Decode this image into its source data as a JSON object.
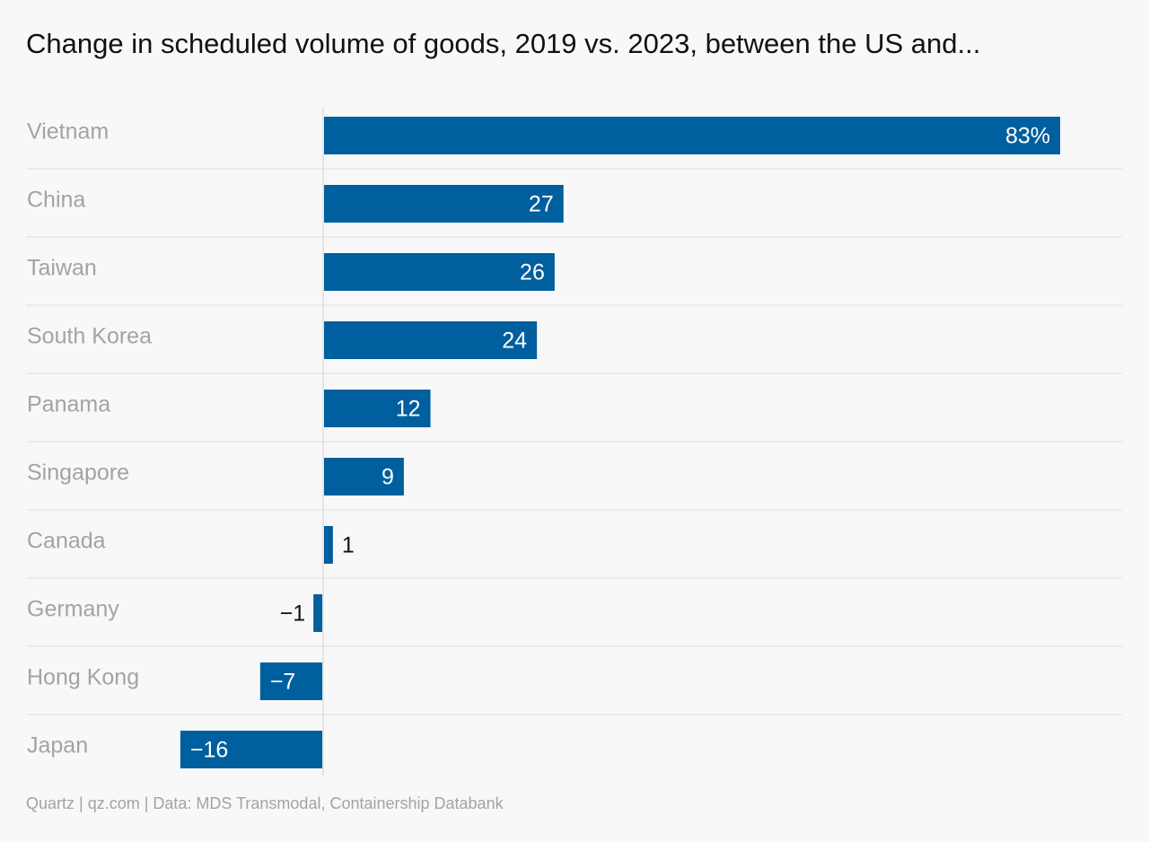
{
  "chart_data": {
    "type": "bar",
    "orientation": "horizontal",
    "title": "Change in scheduled volume of goods, 2019 vs. 2023, between the US and...",
    "categories": [
      "Vietnam",
      "China",
      "Taiwan",
      "South Korea",
      "Panama",
      "Singapore",
      "Canada",
      "Germany",
      "Hong Kong",
      "Japan"
    ],
    "values": [
      83,
      27,
      26,
      24,
      12,
      9,
      1,
      -1,
      -7,
      -16
    ],
    "value_labels": [
      "83%",
      "27",
      "26",
      "24",
      "12",
      "9",
      "1",
      "−1",
      "−7",
      "−16"
    ],
    "unit": "%",
    "xlim": [
      -16,
      83
    ],
    "grid": false,
    "legend": "none",
    "colors": {
      "bar": "#005f9e",
      "category_label": "#a3a3a3",
      "label_inside": "#ffffff",
      "label_outside": "#111111",
      "row_divider": "#dedede",
      "zero_line": "#dedede"
    }
  },
  "footer": {
    "source": "Quartz | qz.com | Data: MDS Transmodal, Containership Databank"
  }
}
